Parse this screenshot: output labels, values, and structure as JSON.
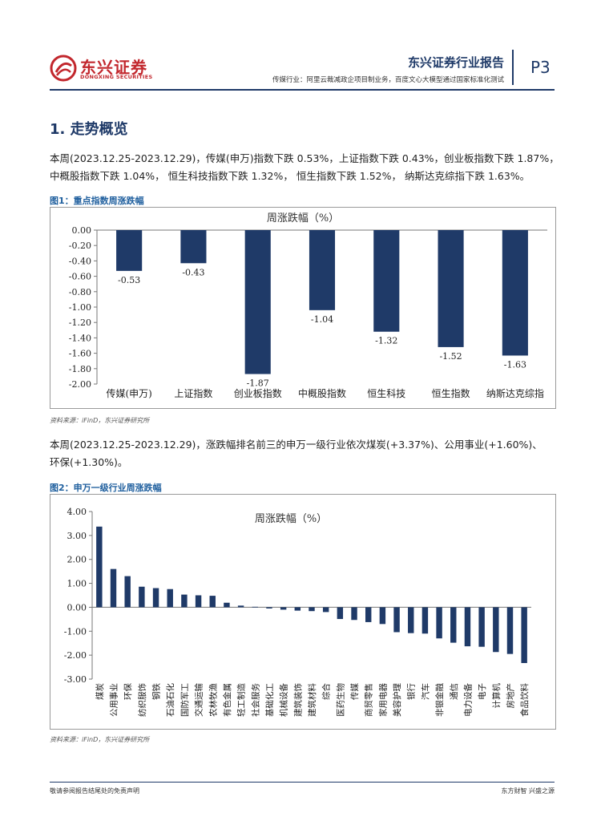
{
  "header": {
    "logo_text": "东兴证券",
    "logo_sub": "DONGXING SECURITIES",
    "report_title": "东兴证券行业报告",
    "report_subtitle": "传媒行业：阿里云裁减政企项目制业务，百度文心大模型通过国家标准化测试",
    "page_number": "P3"
  },
  "section": {
    "title": "1. 走势概览",
    "para1_line1": "本周(2023.12.25-2023.12.29)，传媒(申万)指数下跌 0.53%，上证指数下跌 0.43%，创业板指数下跌 1.87%，",
    "para1_line2": "中概股指数下跌 1.04%， 恒生科技指数下跌 1.32%， 恒生指数下跌 1.52%， 纳斯达克综指下跌 1.63%。",
    "para2_line1": "本周(2023.12.25-2023.12.29)，涨跌幅排名前三的申万一级行业依次煤炭(+3.37%)、公用事业(+1.60%)、",
    "para2_line2": "环保(+1.30%)。"
  },
  "figure1": {
    "caption": "图1：重点指数周涨跌幅",
    "source": "资料来源：iFinD，东兴证券研究所"
  },
  "figure2": {
    "caption": "图2：申万一级行业周涨跌幅",
    "source": "资料来源：iFinD，东兴证券研究所"
  },
  "chart_data": [
    {
      "type": "bar",
      "title": "周涨跌幅（%）",
      "categories": [
        "传媒(申万)",
        "上证指数",
        "创业板指数",
        "中概股指数",
        "恒生科技",
        "恒生指数",
        "纳斯达克综指"
      ],
      "values": [
        -0.53,
        -0.43,
        -1.87,
        -1.04,
        -1.32,
        -1.52,
        -1.63
      ],
      "data_labels": [
        "-0.53",
        "-0.43",
        "-1.87",
        "-1.04",
        "-1.32",
        "-1.52",
        "-1.63"
      ],
      "yticks": [
        "0.00",
        "-0.20",
        "-0.40",
        "-0.60",
        "-0.80",
        "-1.00",
        "-1.20",
        "-1.40",
        "-1.60",
        "-1.80",
        "-2.00"
      ],
      "ylim": [
        -2.0,
        0.0
      ],
      "bar_color": "#1f3a68",
      "grid": false,
      "legend": "none"
    },
    {
      "type": "bar",
      "title": "周涨跌幅（%）",
      "categories": [
        "煤炭",
        "公用事业",
        "环保",
        "纺织服饰",
        "钢铁",
        "石油石化",
        "国防军工",
        "交通运输",
        "农林牧渔",
        "有色金属",
        "轻工制造",
        "社会服务",
        "基础化工",
        "机械设备",
        "建筑装饰",
        "建筑材料",
        "综合",
        "医药生物",
        "传媒",
        "商贸零售",
        "家用电器",
        "美容护理",
        "银行",
        "汽车",
        "非银金融",
        "通信",
        "电力设备",
        "电子",
        "计算机",
        "房地产",
        "食品饮料"
      ],
      "values": [
        3.37,
        1.6,
        1.3,
        0.86,
        0.8,
        0.76,
        0.53,
        0.5,
        0.48,
        0.19,
        0.07,
        0.02,
        -0.05,
        -0.1,
        -0.14,
        -0.16,
        -0.2,
        -0.49,
        -0.53,
        -0.62,
        -0.7,
        -1.04,
        -1.08,
        -1.1,
        -1.3,
        -1.48,
        -1.63,
        -1.65,
        -1.87,
        -1.95,
        -2.33
      ],
      "yticks": [
        "4.00",
        "3.00",
        "2.00",
        "1.00",
        "0.00",
        "-1.00",
        "-2.00",
        "-3.00"
      ],
      "ylim": [
        -3.0,
        4.0
      ],
      "bar_color": "#1f3a68",
      "grid": false,
      "legend": "none"
    }
  ],
  "footer": {
    "disclaimer": "敬请参阅报告结尾处的免责声明",
    "slogan": "东方财智  兴盛之源"
  },
  "colors": {
    "brand_red": "#c2272d",
    "navy": "#1f3a68",
    "caption_blue": "#1f5f9e"
  }
}
